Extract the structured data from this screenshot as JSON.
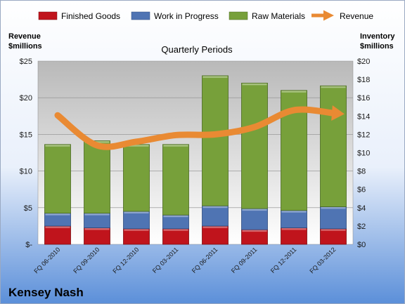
{
  "chart_data": {
    "type": "bar",
    "stacked": true,
    "title": "Quarterly Periods",
    "company": "Kensey Nash",
    "left_axis": {
      "title_line1": "Revenue",
      "title_line2": "$millions",
      "ylim": [
        0,
        25
      ],
      "ticks": [
        {
          "value": 0,
          "label": "$-"
        },
        {
          "value": 5,
          "label": "$5"
        },
        {
          "value": 10,
          "label": "$10"
        },
        {
          "value": 15,
          "label": "$15"
        },
        {
          "value": 20,
          "label": "$20"
        },
        {
          "value": 25,
          "label": "$25"
        }
      ]
    },
    "right_axis": {
      "title_line1": "Inventory",
      "title_line2": "$millions",
      "ylim": [
        0,
        20
      ],
      "ticks": [
        {
          "value": 0,
          "label": "$0"
        },
        {
          "value": 2,
          "label": "$2"
        },
        {
          "value": 4,
          "label": "$4"
        },
        {
          "value": 6,
          "label": "$6"
        },
        {
          "value": 8,
          "label": "$8"
        },
        {
          "value": 10,
          "label": "$10"
        },
        {
          "value": 12,
          "label": "$12"
        },
        {
          "value": 14,
          "label": "$14"
        },
        {
          "value": 16,
          "label": "$16"
        },
        {
          "value": 18,
          "label": "$18"
        },
        {
          "value": 20,
          "label": "$20"
        }
      ]
    },
    "categories": [
      "FQ 06-2010",
      "FQ 09-2010",
      "FQ 12-2010",
      "FQ 03-2011",
      "FQ 06-2011",
      "FQ 09-2011",
      "FQ 12-2011",
      "FQ 03-2012"
    ],
    "series": [
      {
        "name": "Finished Goods",
        "kind": "bar",
        "axis": "right",
        "color": "#c0141c",
        "values": [
          2.0,
          1.8,
          1.7,
          1.7,
          2.0,
          1.6,
          1.8,
          1.7
        ]
      },
      {
        "name": "Work in Progress",
        "kind": "bar",
        "axis": "right",
        "color": "#4f74b3",
        "values": [
          1.4,
          1.6,
          1.9,
          1.5,
          2.2,
          2.3,
          1.9,
          2.4
        ]
      },
      {
        "name": "Raw Materials",
        "kind": "bar",
        "axis": "right",
        "color": "#77a03a",
        "values": [
          7.5,
          7.9,
          7.3,
          7.7,
          14.2,
          13.7,
          13.1,
          13.2
        ]
      },
      {
        "name": "Revenue",
        "kind": "line",
        "axis": "left",
        "color": "#e98a33",
        "values": [
          17.6,
          13.5,
          14.0,
          14.9,
          15.0,
          16.0,
          18.3,
          17.9
        ]
      }
    ],
    "legend_position": "top",
    "grid": true
  }
}
